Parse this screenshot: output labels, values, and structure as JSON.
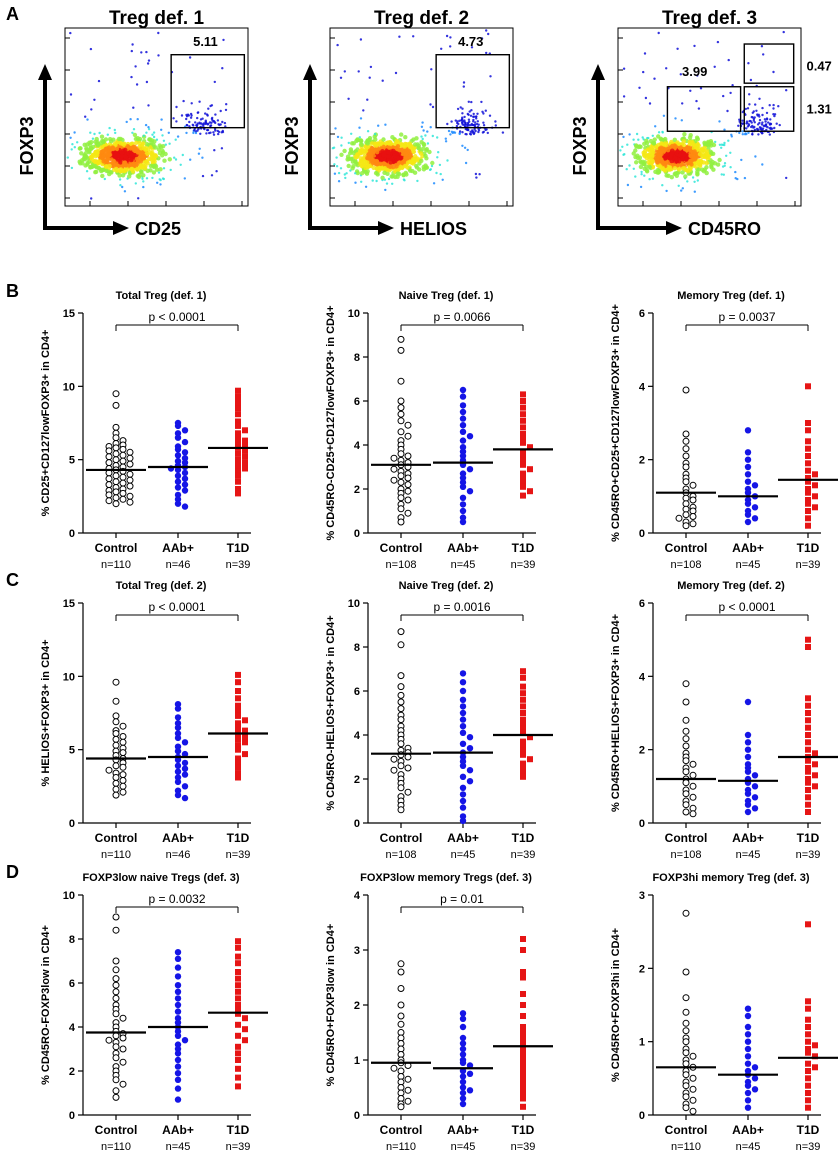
{
  "panels": {
    "A": "A",
    "B": "B",
    "C": "C",
    "D": "D"
  },
  "flow_plots": [
    {
      "title": "Treg def. 1",
      "xlabel": "CD25",
      "ylabel": "FOXP3",
      "gates": [
        {
          "label": "5.11"
        }
      ]
    },
    {
      "title": "Treg def. 2",
      "xlabel": "HELIOS",
      "ylabel": "FOXP3",
      "gates": [
        {
          "label": "4.73"
        }
      ]
    },
    {
      "title": "Treg def. 3",
      "xlabel": "CD45RO",
      "ylabel": "FOXP3",
      "gates": [
        {
          "label": "3.99"
        },
        {
          "label": "0.47"
        },
        {
          "label": "1.31"
        }
      ]
    }
  ],
  "colors": {
    "control": "#000000",
    "aab": "#1515e6",
    "t1d": "#e61515",
    "density": [
      "#1010d8",
      "#1d8bff",
      "#2fe6d8",
      "#90f040",
      "#f5e814",
      "#ff8a10",
      "#e81010"
    ]
  },
  "chart_data": [
    {
      "type": "scatter",
      "title": "Total Treg (def. 1)",
      "ylabel": "% CD25+CD127lowFOXP3+ in CD4+",
      "ylim": [
        0,
        15
      ],
      "yticks": [
        "0",
        "5",
        "10",
        "15"
      ],
      "pvalue": "p < 0.0001",
      "groups": [
        {
          "name": "Control",
          "n": "n=110",
          "median": 4.3,
          "values": [
            9.5,
            8.7,
            7.2,
            6.8,
            6.5,
            6.3,
            6.1,
            6.0,
            5.9,
            5.8,
            5.7,
            5.6,
            5.5,
            5.4,
            5.3,
            5.2,
            5.1,
            5.0,
            4.9,
            4.8,
            4.7,
            4.6,
            4.5,
            4.4,
            4.3,
            4.2,
            4.1,
            4.0,
            3.9,
            3.8,
            3.7,
            3.6,
            3.5,
            3.4,
            3.3,
            3.2,
            3.1,
            3.0,
            2.9,
            2.8,
            2.7,
            2.6,
            2.5,
            2.4,
            2.3,
            2.2,
            2.1,
            2.0
          ]
        },
        {
          "name": "AAb+",
          "n": "n=46",
          "median": 4.5,
          "values": [
            7.5,
            7.3,
            7.0,
            6.8,
            6.5,
            6.2,
            5.9,
            5.7,
            5.5,
            5.3,
            5.1,
            4.9,
            4.8,
            4.6,
            4.5,
            4.4,
            4.3,
            4.1,
            3.9,
            3.7,
            3.5,
            3.3,
            3.1,
            2.9,
            2.6,
            2.3,
            2.0,
            1.8
          ]
        },
        {
          "name": "T1D",
          "n": "n=39",
          "median": 5.8,
          "values": [
            9.7,
            9.3,
            8.9,
            8.5,
            8.1,
            7.6,
            7.3,
            7.0,
            6.8,
            6.5,
            6.3,
            6.1,
            5.9,
            5.8,
            5.6,
            5.4,
            5.2,
            5.0,
            4.8,
            4.6,
            4.4,
            4.2,
            3.9,
            3.5,
            3.0,
            2.7
          ]
        }
      ]
    },
    {
      "type": "scatter",
      "title": "Naive Treg (def. 1)",
      "ylabel": "% CD45RO-CD25+CD127lowFOXP3+ in CD4+",
      "ylim": [
        0,
        10
      ],
      "yticks": [
        "0",
        "2",
        "4",
        "6",
        "8",
        "10"
      ],
      "pvalue": "p = 0.0066",
      "groups": [
        {
          "name": "Control",
          "n": "n=108",
          "median": 3.1,
          "values": [
            8.8,
            8.3,
            6.9,
            6.0,
            5.7,
            5.4,
            5.1,
            4.9,
            4.6,
            4.4,
            4.2,
            4.0,
            3.8,
            3.6,
            3.5,
            3.4,
            3.3,
            3.2,
            3.1,
            3.0,
            2.9,
            2.8,
            2.7,
            2.6,
            2.5,
            2.4,
            2.3,
            2.2,
            2.0,
            1.9,
            1.8,
            1.6,
            1.5,
            1.3,
            1.1,
            0.9,
            0.7,
            0.5
          ]
        },
        {
          "name": "AAb+",
          "n": "n=45",
          "median": 3.2,
          "values": [
            6.5,
            6.2,
            5.8,
            5.5,
            5.2,
            4.9,
            4.6,
            4.4,
            4.2,
            3.9,
            3.7,
            3.5,
            3.3,
            3.1,
            2.9,
            2.7,
            2.5,
            2.3,
            2.1,
            1.9,
            1.6,
            1.3,
            1.0,
            0.7,
            0.5
          ]
        },
        {
          "name": "T1D",
          "n": "n=39",
          "median": 3.8,
          "values": [
            6.3,
            6.0,
            5.7,
            5.4,
            5.1,
            4.8,
            4.5,
            4.3,
            4.1,
            3.9,
            3.7,
            3.5,
            3.3,
            3.1,
            2.9,
            2.7,
            2.5,
            2.3,
            2.1,
            1.9,
            1.7
          ]
        }
      ]
    },
    {
      "type": "scatter",
      "title": "Memory Treg (def. 1)",
      "ylabel": "% CD45RO+CD25+CD127lowFOXP3+ in CD4+",
      "ylim": [
        0,
        6
      ],
      "yticks": [
        "0",
        "2",
        "4",
        "6"
      ],
      "pvalue": "p = 0.0037",
      "groups": [
        {
          "name": "Control",
          "n": "n=108",
          "median": 1.1,
          "values": [
            3.9,
            2.7,
            2.5,
            2.3,
            2.1,
            1.9,
            1.8,
            1.6,
            1.5,
            1.4,
            1.3,
            1.2,
            1.1,
            1.0,
            0.95,
            0.9,
            0.8,
            0.7,
            0.65,
            0.6,
            0.5,
            0.45,
            0.4,
            0.3,
            0.25,
            0.2
          ]
        },
        {
          "name": "AAb+",
          "n": "n=45",
          "median": 1.0,
          "values": [
            2.8,
            2.2,
            2.0,
            1.8,
            1.6,
            1.4,
            1.3,
            1.2,
            1.1,
            1.0,
            0.9,
            0.8,
            0.7,
            0.6,
            0.5,
            0.4,
            0.3
          ]
        },
        {
          "name": "T1D",
          "n": "n=39",
          "median": 1.45,
          "values": [
            4.0,
            3.0,
            2.8,
            2.5,
            2.3,
            2.1,
            1.9,
            1.7,
            1.6,
            1.5,
            1.4,
            1.3,
            1.2,
            1.1,
            1.0,
            0.9,
            0.8,
            0.7,
            0.6,
            0.4,
            0.2
          ]
        }
      ]
    },
    {
      "type": "scatter",
      "title": "Total Treg (def. 2)",
      "ylabel": "% HELIOS+FOXP3+ in CD4+",
      "ylim": [
        0,
        15
      ],
      "yticks": [
        "0",
        "5",
        "10",
        "15"
      ],
      "pvalue": "p < 0.0001",
      "groups": [
        {
          "name": "Control",
          "n": "n=110",
          "median": 4.4,
          "values": [
            9.6,
            8.3,
            7.3,
            6.9,
            6.6,
            6.3,
            6.1,
            5.9,
            5.7,
            5.5,
            5.3,
            5.1,
            4.9,
            4.8,
            4.6,
            4.4,
            4.3,
            4.1,
            3.9,
            3.8,
            3.6,
            3.4,
            3.3,
            3.1,
            2.9,
            2.7,
            2.5,
            2.3,
            2.1,
            1.9
          ]
        },
        {
          "name": "AAb+",
          "n": "n=46",
          "median": 4.5,
          "values": [
            8.1,
            7.8,
            7.2,
            6.8,
            6.5,
            6.1,
            5.8,
            5.5,
            5.2,
            4.9,
            4.7,
            4.5,
            4.3,
            4.1,
            3.9,
            3.7,
            3.5,
            3.3,
            3.1,
            2.8,
            2.5,
            2.2,
            1.9,
            1.7
          ]
        },
        {
          "name": "T1D",
          "n": "n=39",
          "median": 6.1,
          "values": [
            10.1,
            9.6,
            9.0,
            8.5,
            8.0,
            7.6,
            7.3,
            7.0,
            6.8,
            6.5,
            6.3,
            6.1,
            5.9,
            5.7,
            5.5,
            5.3,
            5.0,
            4.7,
            4.4,
            4.1,
            3.8,
            3.4,
            3.1
          ]
        }
      ]
    },
    {
      "type": "scatter",
      "title": "Naive Treg (def. 2)",
      "ylabel": "% CD45RO-HELIOS+FOXP3+ in CD4+",
      "ylim": [
        0,
        10
      ],
      "yticks": [
        "0",
        "2",
        "4",
        "6",
        "8",
        "10"
      ],
      "pvalue": "p = 0.0016",
      "groups": [
        {
          "name": "Control",
          "n": "n=108",
          "median": 3.15,
          "values": [
            8.7,
            8.1,
            6.7,
            6.2,
            5.8,
            5.5,
            5.2,
            4.9,
            4.7,
            4.4,
            4.2,
            4.0,
            3.8,
            3.6,
            3.4,
            3.3,
            3.2,
            3.1,
            3.0,
            2.9,
            2.8,
            2.6,
            2.5,
            2.4,
            2.2,
            2.0,
            1.8,
            1.6,
            1.4,
            1.2,
            1.0,
            0.8,
            0.6
          ]
        },
        {
          "name": "AAb+",
          "n": "n=45",
          "median": 3.2,
          "values": [
            6.8,
            6.4,
            6.0,
            5.6,
            5.3,
            5.0,
            4.7,
            4.4,
            4.1,
            3.9,
            3.6,
            3.4,
            3.2,
            3.0,
            2.8,
            2.6,
            2.4,
            2.1,
            1.9,
            1.6,
            1.3,
            1.0,
            0.7,
            0.3,
            0.1
          ]
        },
        {
          "name": "T1D",
          "n": "n=39",
          "median": 4.0,
          "values": [
            6.9,
            6.6,
            6.2,
            5.9,
            5.6,
            5.3,
            5.0,
            4.7,
            4.5,
            4.3,
            4.1,
            3.9,
            3.7,
            3.5,
            3.3,
            3.1,
            2.9,
            2.7,
            2.5,
            2.3,
            2.1
          ]
        }
      ]
    },
    {
      "type": "scatter",
      "title": "Memory Treg (def. 2)",
      "ylabel": "% CD45RO+HELIOS+FOXP3+ in CD4+",
      "ylim": [
        0,
        6
      ],
      "yticks": [
        "0",
        "2",
        "4",
        "6"
      ],
      "pvalue": "p < 0.0001",
      "groups": [
        {
          "name": "Control",
          "n": "n=108",
          "median": 1.2,
          "values": [
            3.8,
            3.3,
            2.8,
            2.5,
            2.3,
            2.1,
            1.9,
            1.8,
            1.7,
            1.6,
            1.5,
            1.4,
            1.3,
            1.2,
            1.1,
            1.0,
            0.9,
            0.8,
            0.7,
            0.6,
            0.5,
            0.4,
            0.3,
            0.25
          ]
        },
        {
          "name": "AAb+",
          "n": "n=45",
          "median": 1.15,
          "values": [
            3.3,
            2.4,
            2.2,
            2.0,
            1.8,
            1.6,
            1.5,
            1.4,
            1.3,
            1.2,
            1.1,
            1.0,
            0.9,
            0.8,
            0.7,
            0.6,
            0.5,
            0.4,
            0.3
          ]
        },
        {
          "name": "T1D",
          "n": "n=39",
          "median": 1.8,
          "values": [
            5.0,
            4.8,
            3.4,
            3.2,
            3.0,
            2.8,
            2.6,
            2.4,
            2.2,
            2.0,
            1.9,
            1.8,
            1.7,
            1.6,
            1.5,
            1.4,
            1.3,
            1.2,
            1.1,
            1.0,
            0.9,
            0.7,
            0.5,
            0.3
          ]
        }
      ]
    },
    {
      "type": "scatter",
      "title": "FOXP3low naive Tregs (def. 3)",
      "ylabel": "% CD45RO-FOXP3low in CD4+",
      "ylim": [
        0,
        10
      ],
      "yticks": [
        "0",
        "2",
        "4",
        "6",
        "8",
        "10"
      ],
      "pvalue": "p = 0.0032",
      "groups": [
        {
          "name": "Control",
          "n": "n=110",
          "median": 3.75,
          "values": [
            9.0,
            8.4,
            7.0,
            6.6,
            6.2,
            5.9,
            5.6,
            5.3,
            5.0,
            4.8,
            4.6,
            4.4,
            4.2,
            4.0,
            3.8,
            3.7,
            3.6,
            3.5,
            3.4,
            3.3,
            3.1,
            3.0,
            2.8,
            2.6,
            2.4,
            2.2,
            2.0,
            1.8,
            1.6,
            1.4,
            1.1,
            0.8
          ]
        },
        {
          "name": "AAb+",
          "n": "n=45",
          "median": 4.0,
          "values": [
            7.4,
            7.1,
            6.7,
            6.3,
            5.9,
            5.6,
            5.3,
            5.0,
            4.7,
            4.4,
            4.2,
            4.0,
            3.8,
            3.6,
            3.4,
            3.2,
            3.0,
            2.8,
            2.5,
            2.2,
            1.9,
            1.6,
            1.2,
            0.7
          ]
        },
        {
          "name": "T1D",
          "n": "n=39",
          "median": 4.65,
          "values": [
            7.9,
            7.6,
            7.2,
            6.9,
            6.5,
            6.2,
            5.9,
            5.6,
            5.3,
            5.0,
            4.8,
            4.6,
            4.4,
            4.1,
            3.9,
            3.6,
            3.4,
            3.1,
            2.8,
            2.5,
            2.1,
            1.7,
            1.3
          ]
        }
      ]
    },
    {
      "type": "scatter",
      "title": "FOXP3low memory Tregs (def. 3)",
      "ylabel": "% CD45RO+FOXP3low in CD4+",
      "ylim": [
        0,
        4
      ],
      "yticks": [
        "0",
        "1",
        "2",
        "3",
        "4"
      ],
      "pvalue": "p = 0.01",
      "groups": [
        {
          "name": "Control",
          "n": "n=110",
          "median": 0.95,
          "values": [
            2.75,
            2.6,
            2.3,
            2.0,
            1.8,
            1.65,
            1.5,
            1.4,
            1.3,
            1.2,
            1.1,
            1.0,
            0.95,
            0.9,
            0.85,
            0.8,
            0.7,
            0.65,
            0.6,
            0.5,
            0.45,
            0.4,
            0.3,
            0.25,
            0.2,
            0.15
          ]
        },
        {
          "name": "AAb+",
          "n": "n=45",
          "median": 0.85,
          "values": [
            1.85,
            1.75,
            1.6,
            1.4,
            1.3,
            1.2,
            1.1,
            1.0,
            0.95,
            0.9,
            0.8,
            0.75,
            0.7,
            0.6,
            0.5,
            0.45,
            0.4,
            0.3,
            0.2
          ]
        },
        {
          "name": "T1D",
          "n": "n=39",
          "median": 1.25,
          "values": [
            3.2,
            3.0,
            2.6,
            2.5,
            2.2,
            2.0,
            1.8,
            1.6,
            1.5,
            1.4,
            1.3,
            1.2,
            1.1,
            1.0,
            0.9,
            0.8,
            0.7,
            0.6,
            0.5,
            0.4,
            0.3,
            0.15
          ]
        }
      ]
    },
    {
      "type": "scatter",
      "title": "FOXP3hi memory Treg (def. 3)",
      "ylabel": "% CD45RO+FOXP3hi in CD4+",
      "ylim": [
        0,
        3
      ],
      "yticks": [
        "0",
        "1",
        "2",
        "3"
      ],
      "pvalue": "",
      "groups": [
        {
          "name": "Control",
          "n": "n=110",
          "median": 0.65,
          "values": [
            2.75,
            1.95,
            1.6,
            1.4,
            1.25,
            1.15,
            1.05,
            1.0,
            0.9,
            0.85,
            0.8,
            0.75,
            0.7,
            0.65,
            0.6,
            0.55,
            0.5,
            0.45,
            0.4,
            0.35,
            0.3,
            0.25,
            0.2,
            0.15,
            0.1,
            0.05
          ]
        },
        {
          "name": "AAb+",
          "n": "n=45",
          "median": 0.55,
          "values": [
            1.45,
            1.35,
            1.2,
            1.1,
            1.0,
            0.9,
            0.8,
            0.7,
            0.65,
            0.6,
            0.55,
            0.5,
            0.45,
            0.4,
            0.35,
            0.3,
            0.2,
            0.1
          ]
        },
        {
          "name": "T1D",
          "n": "n=39",
          "median": 0.78,
          "values": [
            2.6,
            1.55,
            1.45,
            1.3,
            1.2,
            1.1,
            1.0,
            0.95,
            0.9,
            0.85,
            0.8,
            0.7,
            0.65,
            0.6,
            0.5,
            0.4,
            0.3,
            0.2,
            0.1
          ]
        }
      ]
    }
  ]
}
